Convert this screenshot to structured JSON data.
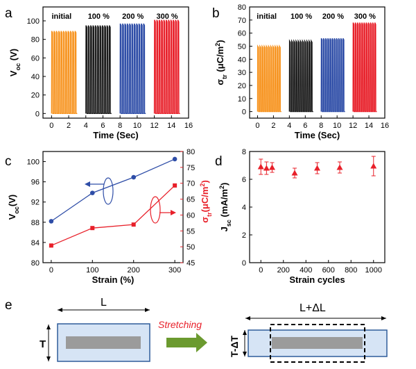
{
  "chart_data": [
    {
      "panel": "a",
      "type": "line",
      "ylabel_main": "V",
      "ylabel_sub": "oc",
      "ylabel_unit": " (V)",
      "xlabel": "Time (Sec)",
      "xlim": [
        -1,
        16
      ],
      "ylim": [
        -5,
        115
      ],
      "xticks": [
        0,
        2,
        4,
        6,
        8,
        10,
        12,
        14,
        16
      ],
      "yticks": [
        0,
        20,
        40,
        60,
        80,
        100
      ],
      "series": [
        {
          "name": "initial",
          "color": "#F7931E",
          "t_start": 0.0,
          "t_end": 3.0,
          "min": 0,
          "max": 89,
          "peaks": 11
        },
        {
          "name": "100 %",
          "color": "#1a1a1a",
          "t_start": 4.0,
          "t_end": 7.0,
          "min": 0,
          "max": 95,
          "peaks": 11
        },
        {
          "name": "200 %",
          "color": "#2E4DA7",
          "t_start": 8.0,
          "t_end": 11.0,
          "min": 0,
          "max": 97,
          "peaks": 11
        },
        {
          "name": "300 %",
          "color": "#E8202A",
          "t_start": 12.0,
          "t_end": 15.0,
          "min": 0,
          "max": 101,
          "peaks": 11
        }
      ]
    },
    {
      "panel": "b",
      "type": "line",
      "ylabel_main": "σ",
      "ylabel_sub": "tr",
      "ylabel_unit": " (μC/m",
      "ylabel_sup": "2",
      "ylabel_end": ")",
      "xlabel": "Time (Sec)",
      "xlim": [
        -1,
        16
      ],
      "ylim": [
        -5,
        80
      ],
      "xticks": [
        0,
        2,
        4,
        6,
        8,
        10,
        12,
        14,
        16
      ],
      "yticks": [
        0,
        10,
        20,
        30,
        40,
        50,
        60,
        70,
        80
      ],
      "series": [
        {
          "name": "initial",
          "color": "#F7931E",
          "t_start": 0.0,
          "t_end": 3.0,
          "min": 0,
          "max": 50,
          "peaks": 11
        },
        {
          "name": "100 %",
          "color": "#1a1a1a",
          "t_start": 4.0,
          "t_end": 7.0,
          "min": 0,
          "max": 54,
          "peaks": 11
        },
        {
          "name": "200 %",
          "color": "#2E4DA7",
          "t_start": 8.0,
          "t_end": 11.0,
          "min": 0,
          "max": 56,
          "peaks": 11
        },
        {
          "name": "300 %",
          "color": "#E8202A",
          "t_start": 12.0,
          "t_end": 15.0,
          "min": 0,
          "max": 68,
          "peaks": 11
        }
      ]
    },
    {
      "panel": "c",
      "type": "line",
      "xlabel": "Strain (%)",
      "xlim": [
        -20,
        320
      ],
      "xticks": [
        0,
        100,
        200,
        300
      ],
      "ylabel_left_main": "V",
      "ylabel_left_sub": "oc",
      "ylabel_left_unit": "(V)",
      "ylim_left": [
        80,
        102
      ],
      "yticks_left": [
        80,
        84,
        88,
        92,
        96,
        100
      ],
      "ylabel_right_main": "σ",
      "ylabel_right_sub": "tr",
      "ylabel_right_unit": "(μC/m",
      "ylabel_right_sup": "2",
      "ylabel_right_end": ")",
      "ylim_right": [
        45,
        80
      ],
      "yticks_right": [
        45,
        50,
        55,
        60,
        65,
        70,
        75,
        80
      ],
      "series": [
        {
          "name": "Voc",
          "axis": "left",
          "color": "#2E4DA7",
          "marker": "circle",
          "x": [
            0,
            100,
            200,
            300
          ],
          "y": [
            88.2,
            93.8,
            96.9,
            100.5
          ],
          "err": [
            0.4,
            0.2,
            0.2,
            0.4
          ]
        },
        {
          "name": "σtr",
          "axis": "right",
          "color": "#E8202A",
          "marker": "square",
          "x": [
            0,
            100,
            200,
            300
          ],
          "y": [
            50.4,
            55.9,
            57.0,
            69.3
          ],
          "err": [
            0.3,
            0.3,
            0.3,
            0.3
          ]
        }
      ]
    },
    {
      "panel": "d",
      "type": "scatter",
      "ylabel_main": "J",
      "ylabel_sub": "sc",
      "ylabel_unit": " (mA/m",
      "ylabel_sup": "2",
      "ylabel_end": ")",
      "xlabel": "Strain cycles",
      "xlim": [
        -100,
        1100
      ],
      "ylim": [
        0,
        8
      ],
      "xticks": [
        0,
        200,
        400,
        600,
        800,
        1000
      ],
      "yticks": [
        0,
        2,
        4,
        6,
        8
      ],
      "series": [
        {
          "name": "Jsc",
          "color": "#E8202A",
          "marker": "triangle",
          "x": [
            0,
            50,
            100,
            300,
            500,
            700,
            1000
          ],
          "y": [
            6.9,
            6.8,
            6.85,
            6.45,
            6.8,
            6.85,
            6.95
          ],
          "err": [
            0.55,
            0.45,
            0.35,
            0.35,
            0.4,
            0.4,
            0.7
          ]
        }
      ]
    }
  ],
  "panels": {
    "a": "a",
    "b": "b",
    "c": "c",
    "d": "d",
    "e": "e"
  },
  "schematic": {
    "length_label": "L",
    "thickness_label": "T",
    "stretched_length_label": "L+ΔL",
    "stretched_thickness_label": "T-ΔT",
    "arrow_label": "Stretching",
    "colors": {
      "box_fill": "#D6E4F5",
      "box_stroke": "#2E5C9A",
      "electrode": "#9B9B9B",
      "arrow": "#6B9A2F",
      "arrow_label": "#E8202A"
    }
  }
}
